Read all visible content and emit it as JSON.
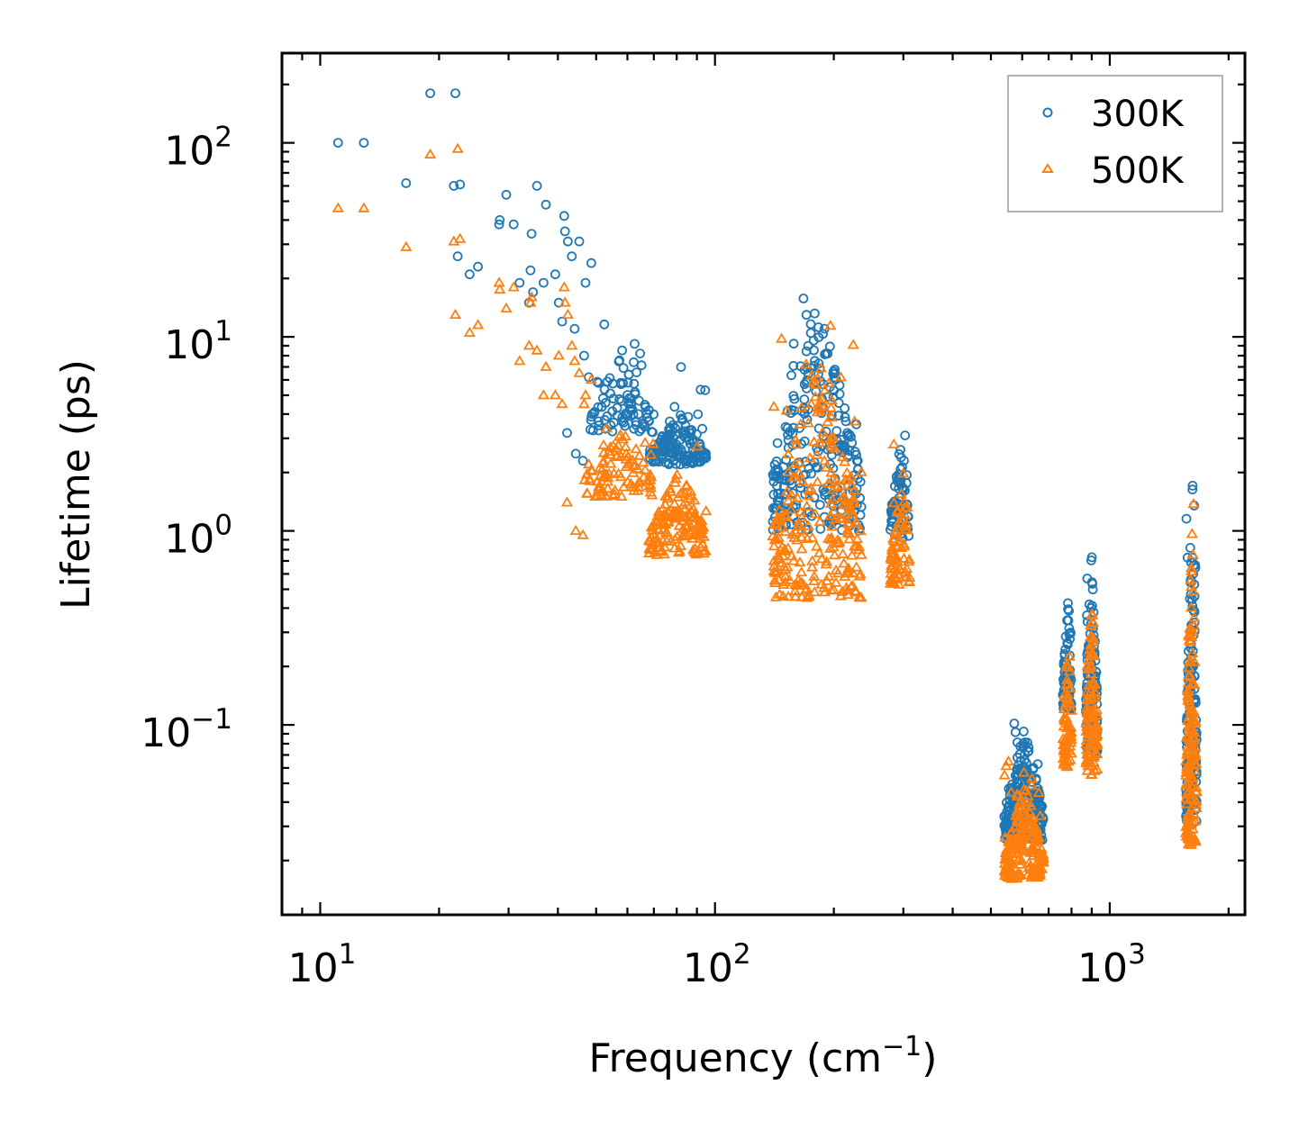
{
  "chart_data": {
    "type": "scatter",
    "title": "",
    "xlabel": {
      "text": "Frequency (cm",
      "sup": "−1",
      "suffix": ")"
    },
    "ylabel": "Lifetime (ps)",
    "xscale": "log",
    "yscale": "log",
    "xlim": [
      8,
      2200
    ],
    "ylim": [
      0.0105,
      290
    ],
    "xticks": [
      {
        "value": 10,
        "base": "10",
        "exp": "1"
      },
      {
        "value": 100,
        "base": "10",
        "exp": "2"
      },
      {
        "value": 1000,
        "base": "10",
        "exp": "3"
      }
    ],
    "yticks": [
      {
        "value": 0.1,
        "base": "10",
        "exp": "−1"
      },
      {
        "value": 1,
        "base": "10",
        "exp": "0"
      },
      {
        "value": 10,
        "base": "10",
        "exp": "1"
      },
      {
        "value": 100,
        "base": "10",
        "exp": "2"
      }
    ],
    "legend": {
      "position": "upper-right"
    },
    "series": [
      {
        "name": "300K",
        "marker": "circle",
        "color": "#1f77b4",
        "points": [
          [
            11.1,
            100
          ],
          [
            12.9,
            100
          ],
          [
            16.5,
            62
          ],
          [
            19,
            180
          ],
          [
            21.8,
            60
          ],
          [
            22,
            180
          ],
          [
            22.3,
            26
          ],
          [
            22.6,
            61
          ],
          [
            23.9,
            21
          ],
          [
            25.1,
            23
          ],
          [
            28.4,
            38
          ],
          [
            28.5,
            40
          ],
          [
            29.6,
            54
          ],
          [
            30.9,
            38
          ],
          [
            32,
            19
          ],
          [
            33.8,
            15
          ],
          [
            34.1,
            22
          ],
          [
            34.3,
            34
          ],
          [
            34.6,
            17
          ],
          [
            35.4,
            60
          ],
          [
            36.8,
            19
          ],
          [
            37.3,
            48
          ],
          [
            39.4,
            21
          ],
          [
            40.2,
            15
          ],
          [
            41,
            12
          ],
          [
            41.5,
            42
          ],
          [
            41.7,
            35
          ],
          [
            42.2,
            3.2
          ],
          [
            42.4,
            31
          ],
          [
            43.4,
            26
          ],
          [
            44.1,
            11
          ],
          [
            44.4,
            2.5
          ],
          [
            45.3,
            31
          ],
          [
            46.3,
            2.3
          ],
          [
            46.6,
            8
          ],
          [
            47,
            19
          ],
          [
            47.9,
            6.2
          ],
          [
            48.6,
            24
          ]
        ],
        "clusters": [
          {
            "xmin": 48,
            "xmax": 70,
            "center": 58,
            "ymin": 3.2,
            "ymax": 13.5,
            "peak": 8,
            "n": 90,
            "seed": 11
          },
          {
            "xmin": 68,
            "xmax": 95,
            "center": 82,
            "ymin": 2.2,
            "ymax": 7.5,
            "peak": 4,
            "n": 150,
            "seed": 12
          },
          {
            "xmin": 140,
            "xmax": 235,
            "center": 182,
            "ymin": 1.0,
            "ymax": 18,
            "peak": 16,
            "n": 260,
            "seed": 13
          },
          {
            "xmin": 278,
            "xmax": 312,
            "center": 300,
            "ymin": 0.9,
            "ymax": 6.0,
            "peak": 3.5,
            "n": 70,
            "seed": 14
          },
          {
            "xmin": 540,
            "xmax": 680,
            "center": 610,
            "ymin": 0.025,
            "ymax": 0.12,
            "peak": 0.1,
            "n": 220,
            "seed": 15
          },
          {
            "xmin": 760,
            "xmax": 800,
            "center": 785,
            "ymin": 0.12,
            "ymax": 0.55,
            "peak": 0.5,
            "n": 70,
            "seed": 16
          },
          {
            "xmin": 870,
            "xmax": 930,
            "center": 900,
            "ymin": 0.07,
            "ymax": 1.1,
            "peak": 0.95,
            "n": 110,
            "seed": 17
          },
          {
            "xmin": 1560,
            "xmax": 1660,
            "center": 1620,
            "ymin": 0.03,
            "ymax": 3.1,
            "peak": 1.9,
            "n": 150,
            "seed": 18
          }
        ]
      },
      {
        "name": "500K",
        "marker": "triangle",
        "color": "#ff7f0e",
        "points": [
          [
            11.1,
            46
          ],
          [
            12.9,
            46
          ],
          [
            16.5,
            29
          ],
          [
            19,
            87
          ],
          [
            21.8,
            31
          ],
          [
            22,
            13
          ],
          [
            22.3,
            93
          ],
          [
            22.6,
            32
          ],
          [
            23.9,
            10.5
          ],
          [
            25.1,
            11.5
          ],
          [
            28.4,
            19
          ],
          [
            28.5,
            17.5
          ],
          [
            29.6,
            14
          ],
          [
            30.9,
            18
          ],
          [
            32,
            7.5
          ],
          [
            33.8,
            9
          ],
          [
            34.1,
            15
          ],
          [
            34.3,
            16
          ],
          [
            35.4,
            8.5
          ],
          [
            36.8,
            5
          ],
          [
            37.3,
            7
          ],
          [
            39.4,
            5
          ],
          [
            40.2,
            8
          ],
          [
            41,
            4.5
          ],
          [
            41.5,
            18
          ],
          [
            41.7,
            15
          ],
          [
            42.2,
            1.4
          ],
          [
            42.4,
            13
          ],
          [
            43.4,
            9
          ],
          [
            44.1,
            7.5
          ],
          [
            44.4,
            1.0
          ],
          [
            45.3,
            6.5
          ],
          [
            46.3,
            0.95
          ],
          [
            46.6,
            4.5
          ],
          [
            47,
            5
          ],
          [
            47.9,
            2.2
          ],
          [
            48.6,
            6
          ]
        ],
        "clusters": [
          {
            "xmin": 46,
            "xmax": 70,
            "center": 58,
            "ymin": 1.5,
            "ymax": 5.5,
            "peak": 3.5,
            "n": 90,
            "seed": 21
          },
          {
            "xmin": 68,
            "xmax": 95,
            "center": 82,
            "ymin": 0.75,
            "ymax": 3.2,
            "peak": 2.2,
            "n": 150,
            "seed": 22
          },
          {
            "xmin": 140,
            "xmax": 235,
            "center": 182,
            "ymin": 0.45,
            "ymax": 13,
            "peak": 11,
            "n": 260,
            "seed": 23
          },
          {
            "xmin": 278,
            "xmax": 312,
            "center": 300,
            "ymin": 0.52,
            "ymax": 3.0,
            "peak": 2.0,
            "n": 70,
            "seed": 24
          },
          {
            "xmin": 540,
            "xmax": 680,
            "center": 610,
            "ymin": 0.016,
            "ymax": 0.075,
            "peak": 0.05,
            "n": 220,
            "seed": 25
          },
          {
            "xmin": 760,
            "xmax": 800,
            "center": 785,
            "ymin": 0.06,
            "ymax": 0.33,
            "peak": 0.3,
            "n": 70,
            "seed": 26
          },
          {
            "xmin": 870,
            "xmax": 930,
            "center": 900,
            "ymin": 0.055,
            "ymax": 0.72,
            "peak": 0.6,
            "n": 110,
            "seed": 27
          },
          {
            "xmin": 1560,
            "xmax": 1660,
            "center": 1620,
            "ymin": 0.023,
            "ymax": 1.8,
            "peak": 1.2,
            "n": 150,
            "seed": 28
          }
        ]
      }
    ]
  }
}
